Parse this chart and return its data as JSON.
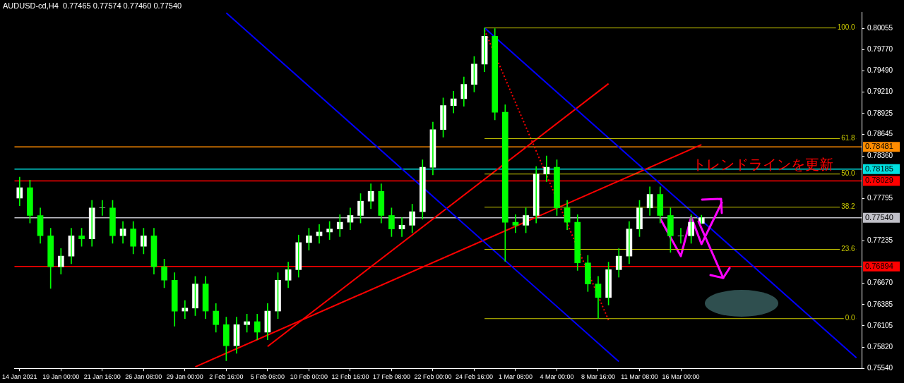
{
  "chart_data": {
    "type": "candlestick",
    "title": "AUDUSD-cd,H4  0.77465 0.77574 0.77460 0.77540",
    "color": "#00ff00",
    "categories": [
      "14 Jan 2021",
      null,
      null,
      null,
      "19 Jan 00:00",
      null,
      null,
      null,
      "21 Jan 16:00",
      null,
      null,
      null,
      "26 Jan 08:00",
      null,
      null,
      null,
      "29 Jan 00:00",
      null,
      null,
      null,
      "2 Feb 16:00",
      null,
      null,
      null,
      "5 Feb 08:00",
      null,
      null,
      null,
      "10 Feb 00:00",
      null,
      null,
      null,
      "12 Feb 16:00",
      null,
      null,
      null,
      "17 Feb 08:00",
      null,
      null,
      null,
      "22 Feb 00:00",
      null,
      null,
      null,
      "24 Feb 16:00",
      null,
      null,
      null,
      "1 Mar 08:00",
      null,
      null,
      null,
      "4 Mar 00:00",
      null,
      null,
      null,
      "8 Mar 16:00",
      null,
      null,
      null,
      "11 Mar 08:00",
      null,
      null,
      null,
      "16 Mar 00:00",
      null,
      null,
      null,
      null,
      null,
      null,
      null,
      null,
      null,
      null,
      null,
      null,
      null,
      null,
      null,
      null,
      null
    ],
    "ohlc": [
      [
        0.778,
        0.7808,
        0.777,
        0.7794
      ],
      [
        0.7794,
        0.7804,
        0.7747,
        0.7757
      ],
      [
        0.7757,
        0.7767,
        0.772,
        0.773
      ],
      [
        0.773,
        0.774,
        0.766,
        0.7689
      ],
      [
        0.7689,
        0.7713,
        0.7679,
        0.7703
      ],
      [
        0.7703,
        0.774,
        0.7693,
        0.773
      ],
      [
        0.773,
        0.774,
        0.7716,
        0.7726
      ],
      [
        0.7726,
        0.7777,
        0.7716,
        0.7767
      ],
      [
        0.7767,
        0.7777,
        0.7757,
        0.7767
      ],
      [
        0.7767,
        0.7777,
        0.772,
        0.773
      ],
      [
        0.773,
        0.7749,
        0.772,
        0.7739
      ],
      [
        0.7739,
        0.7749,
        0.7706,
        0.7716
      ],
      [
        0.7716,
        0.774,
        0.7706,
        0.773
      ],
      [
        0.773,
        0.774,
        0.7679,
        0.7689
      ],
      [
        0.7689,
        0.7699,
        0.7661,
        0.7671
      ],
      [
        0.7671,
        0.7681,
        0.761,
        0.763
      ],
      [
        0.763,
        0.7644,
        0.762,
        0.7634
      ],
      [
        0.7634,
        0.7676,
        0.7624,
        0.7666
      ],
      [
        0.7666,
        0.7676,
        0.762,
        0.763
      ],
      [
        0.763,
        0.764,
        0.7602,
        0.7612
      ],
      [
        0.7612,
        0.7622,
        0.7564,
        0.7584
      ],
      [
        0.7584,
        0.7622,
        0.7574,
        0.7612
      ],
      [
        0.7612,
        0.7626,
        0.7602,
        0.7616
      ],
      [
        0.7616,
        0.7626,
        0.7592,
        0.7602
      ],
      [
        0.7602,
        0.764,
        0.7592,
        0.763
      ],
      [
        0.763,
        0.7681,
        0.762,
        0.7671
      ],
      [
        0.7671,
        0.7695,
        0.7661,
        0.7685
      ],
      [
        0.7685,
        0.7731,
        0.7675,
        0.7721
      ],
      [
        0.7721,
        0.774,
        0.7711,
        0.773
      ],
      [
        0.773,
        0.7745,
        0.772,
        0.7735
      ],
      [
        0.7735,
        0.7749,
        0.7725,
        0.7739
      ],
      [
        0.7739,
        0.7758,
        0.7729,
        0.7748
      ],
      [
        0.7748,
        0.7767,
        0.7738,
        0.7757
      ],
      [
        0.7757,
        0.7786,
        0.7747,
        0.7776
      ],
      [
        0.7776,
        0.7799,
        0.7766,
        0.7789
      ],
      [
        0.7789,
        0.7799,
        0.7747,
        0.7757
      ],
      [
        0.7757,
        0.7767,
        0.7729,
        0.7739
      ],
      [
        0.7739,
        0.7754,
        0.7729,
        0.7744
      ],
      [
        0.7744,
        0.7772,
        0.7734,
        0.7762
      ],
      [
        0.7762,
        0.7831,
        0.7752,
        0.7821
      ],
      [
        0.7821,
        0.7881,
        0.7811,
        0.7871
      ],
      [
        0.7871,
        0.7913,
        0.7861,
        0.7903
      ],
      [
        0.7903,
        0.7922,
        0.7893,
        0.7912
      ],
      [
        0.7912,
        0.7941,
        0.7902,
        0.7931
      ],
      [
        0.7931,
        0.7968,
        0.7921,
        0.7958
      ],
      [
        0.7958,
        0.8006,
        0.7948,
        0.7995
      ],
      [
        0.7995,
        0.8005,
        0.7884,
        0.7894
      ],
      [
        0.7894,
        0.7904,
        0.7696,
        0.7748
      ],
      [
        0.7748,
        0.7758,
        0.7734,
        0.7744
      ],
      [
        0.7744,
        0.7767,
        0.7734,
        0.7757
      ],
      [
        0.7757,
        0.7822,
        0.7747,
        0.7812
      ],
      [
        0.7812,
        0.7836,
        0.7802,
        0.7821
      ],
      [
        0.7821,
        0.7831,
        0.7757,
        0.7767
      ],
      [
        0.7767,
        0.7777,
        0.7738,
        0.7748
      ],
      [
        0.7748,
        0.7758,
        0.7684,
        0.7694
      ],
      [
        0.7694,
        0.7704,
        0.7656,
        0.7666
      ],
      [
        0.7666,
        0.7676,
        0.762,
        0.7648
      ],
      [
        0.7648,
        0.7695,
        0.7638,
        0.7685
      ],
      [
        0.7685,
        0.7713,
        0.7675,
        0.7703
      ],
      [
        0.7703,
        0.7749,
        0.7693,
        0.7739
      ],
      [
        0.7739,
        0.7777,
        0.7729,
        0.7767
      ],
      [
        0.7767,
        0.7795,
        0.7757,
        0.7785
      ],
      [
        0.7785,
        0.7795,
        0.7747,
        0.7757
      ],
      [
        0.7757,
        0.7767,
        0.7708,
        0.773
      ],
      [
        0.773,
        0.774,
        0.772,
        0.773
      ],
      [
        0.773,
        0.7758,
        0.772,
        0.7748
      ],
      [
        0.77465,
        0.77574,
        0.7746,
        0.7754
      ],
      null,
      null,
      null,
      null,
      null,
      null,
      null,
      null,
      null,
      null,
      null,
      null,
      null,
      null,
      null
    ],
    "colors": [
      "#ffffff",
      "#00ff00",
      "#00ff00",
      "#00ff00",
      "#ffffff",
      "#ffffff",
      "#00ff00",
      "#ffffff",
      "#ffffff",
      "#00ff00",
      "#ffffff",
      "#00ff00",
      "#ffffff",
      "#00ff00",
      "#00ff00",
      "#00ff00",
      "#ffffff",
      "#ffffff",
      "#00ff00",
      "#00ff00",
      "#00ff00",
      "#ffffff",
      "#ffffff",
      "#00ff00",
      "#ffffff",
      "#ffffff",
      "#ffffff",
      "#ffffff",
      "#ffffff",
      "#ffffff",
      "#ffffff",
      "#ffffff",
      "#ffffff",
      "#ffffff",
      "#ffffff",
      "#00ff00",
      "#00ff00",
      "#ffffff",
      "#ffffff",
      "#ffffff",
      "#ffffff",
      "#ffffff",
      "#ffffff",
      "#ffffff",
      "#ffffff",
      "#ffffff",
      "#00ff00",
      "#00ff00",
      "#00ff00",
      "#ffffff",
      "#ffffff",
      "#ffffff",
      "#00ff00",
      "#00ff00",
      "#00ff00",
      "#00ff00",
      "#00ff00",
      "#ffffff",
      "#ffffff",
      "#ffffff",
      "#ffffff",
      "#ffffff",
      "#00ff00",
      "#00ff00",
      "#ffffff",
      "#ffffff",
      "#ffffff",
      null,
      null,
      null,
      null,
      null,
      null,
      null,
      null,
      null,
      null,
      null,
      null,
      null,
      null,
      null
    ],
    "ylim": [
      0.7554,
      0.8027
    ],
    "yticks": [
      {
        "value": 0.80055,
        "label": "0.80055"
      },
      {
        "value": 0.7977,
        "label": "0.79770"
      },
      {
        "value": 0.7949,
        "label": "0.79490"
      },
      {
        "value": 0.7921,
        "label": "0.79210"
      },
      {
        "value": 0.78925,
        "label": "0.78925"
      },
      {
        "value": 0.78645,
        "label": "0.78645"
      },
      {
        "value": 0.7836,
        "label": "0.78360"
      },
      {
        "value": 0.77795,
        "label": "0.77795"
      },
      {
        "value": 0.77235,
        "label": "0.77235"
      },
      {
        "value": 0.7667,
        "label": "0.76670"
      },
      {
        "value": 0.76385,
        "label": "0.76385"
      },
      {
        "value": 0.76105,
        "label": "0.76105"
      },
      {
        "value": 0.7582,
        "label": "0.75820"
      },
      {
        "value": 0.7554,
        "label": "0.75540"
      }
    ],
    "series": [
      {
        "type": "line",
        "name": "100.0",
        "color": "#c8c800",
        "values": [
          null,
          null,
          null,
          null,
          null,
          null,
          null,
          null,
          null,
          null,
          null,
          null,
          null,
          null,
          null,
          null,
          null,
          null,
          null,
          null,
          null,
          null,
          null,
          null,
          null,
          null,
          null,
          null,
          null,
          null,
          null,
          null,
          null,
          null,
          null,
          null,
          null,
          null,
          null,
          null,
          null,
          null,
          null,
          null,
          null,
          0.8006,
          null,
          null,
          null,
          null,
          null,
          null,
          null,
          null,
          null,
          null,
          null,
          null,
          null,
          null,
          null,
          null,
          null,
          null,
          null,
          null,
          null,
          null,
          null,
          null,
          null,
          null,
          null,
          null,
          null,
          null,
          null,
          null,
          null,
          null,
          null,
          0.8006
        ]
      },
      {
        "type": "line",
        "name": "61.8",
        "color": "#c8c800",
        "values": [
          null,
          null,
          null,
          null,
          null,
          null,
          null,
          null,
          null,
          null,
          null,
          null,
          null,
          null,
          null,
          null,
          null,
          null,
          null,
          null,
          null,
          null,
          null,
          null,
          null,
          null,
          null,
          null,
          null,
          null,
          null,
          null,
          null,
          null,
          null,
          null,
          null,
          null,
          null,
          null,
          null,
          null,
          null,
          null,
          null,
          0.7859,
          null,
          null,
          null,
          null,
          null,
          null,
          null,
          null,
          null,
          null,
          null,
          null,
          null,
          null,
          null,
          null,
          null,
          null,
          null,
          null,
          null,
          null,
          null,
          null,
          null,
          null,
          null,
          null,
          null,
          null,
          null,
          null,
          null,
          null,
          null,
          0.7859
        ]
      },
      {
        "type": "line",
        "name": "50.0",
        "color": "#c8c800",
        "values": [
          null,
          null,
          null,
          null,
          null,
          null,
          null,
          null,
          null,
          null,
          null,
          null,
          null,
          null,
          null,
          null,
          null,
          null,
          null,
          null,
          null,
          null,
          null,
          null,
          null,
          null,
          null,
          null,
          null,
          null,
          null,
          null,
          null,
          null,
          null,
          null,
          null,
          null,
          null,
          null,
          null,
          null,
          null,
          null,
          null,
          0.7812,
          null,
          null,
          null,
          null,
          null,
          null,
          null,
          null,
          null,
          null,
          null,
          null,
          null,
          null,
          null,
          null,
          null,
          null,
          null,
          null,
          null,
          null,
          null,
          null,
          null,
          null,
          null,
          null,
          null,
          null,
          null,
          null,
          null,
          null,
          null,
          0.7812
        ]
      },
      {
        "type": "line",
        "name": "38.2",
        "color": "#c8c800",
        "values": [
          null,
          null,
          null,
          null,
          null,
          null,
          null,
          null,
          null,
          null,
          null,
          null,
          null,
          null,
          null,
          null,
          null,
          null,
          null,
          null,
          null,
          null,
          null,
          null,
          null,
          null,
          null,
          null,
          null,
          null,
          null,
          null,
          null,
          null,
          null,
          null,
          null,
          null,
          null,
          null,
          null,
          null,
          null,
          null,
          null,
          0.7768,
          null,
          null,
          null,
          null,
          null,
          null,
          null,
          null,
          null,
          null,
          null,
          null,
          null,
          null,
          null,
          null,
          null,
          null,
          null,
          null,
          null,
          null,
          null,
          null,
          null,
          null,
          null,
          null,
          null,
          null,
          null,
          null,
          null,
          null,
          null,
          0.7768
        ]
      },
      {
        "type": "line",
        "name": "23.6",
        "color": "#c8c800",
        "values": [
          null,
          null,
          null,
          null,
          null,
          null,
          null,
          null,
          null,
          null,
          null,
          null,
          null,
          null,
          null,
          null,
          null,
          null,
          null,
          null,
          null,
          null,
          null,
          null,
          null,
          null,
          null,
          null,
          null,
          null,
          null,
          null,
          null,
          null,
          null,
          null,
          null,
          null,
          null,
          null,
          null,
          null,
          null,
          null,
          null,
          0.7712,
          null,
          null,
          null,
          null,
          null,
          null,
          null,
          null,
          null,
          null,
          null,
          null,
          null,
          null,
          null,
          null,
          null,
          null,
          null,
          null,
          null,
          null,
          null,
          null,
          null,
          null,
          null,
          null,
          null,
          null,
          null,
          null,
          null,
          null,
          null,
          0.7712
        ]
      },
      {
        "type": "line",
        "name": "0.0",
        "color": "#c8c800",
        "values": [
          null,
          null,
          null,
          null,
          null,
          null,
          null,
          null,
          null,
          null,
          null,
          null,
          null,
          null,
          null,
          null,
          null,
          null,
          null,
          null,
          null,
          null,
          null,
          null,
          null,
          null,
          null,
          null,
          null,
          null,
          null,
          null,
          null,
          null,
          null,
          null,
          null,
          null,
          null,
          null,
          null,
          null,
          null,
          null,
          null,
          0.762,
          null,
          null,
          null,
          null,
          null,
          null,
          null,
          null,
          null,
          null,
          null,
          null,
          null,
          null,
          null,
          null,
          null,
          null,
          null,
          null,
          null,
          null,
          null,
          null,
          null,
          null,
          null,
          null,
          null,
          null,
          null,
          null,
          null,
          null,
          null,
          0.762
        ]
      },
      {
        "type": "line",
        "color": "#ff00ff",
        "values": [
          null,
          null,
          null,
          null,
          null,
          null,
          null,
          null,
          null,
          null,
          null,
          null,
          null,
          null,
          null,
          null,
          null,
          null,
          null,
          null,
          null,
          null,
          null,
          null,
          null,
          null,
          null,
          null,
          null,
          null,
          null,
          null,
          null,
          null,
          null,
          null,
          null,
          null,
          null,
          null,
          null,
          null,
          null,
          null,
          null,
          null,
          null,
          null,
          null,
          null,
          null,
          null,
          null,
          null,
          null,
          null,
          null,
          null,
          null,
          null,
          null,
          null,
          0.7753,
          null,
          0.7703,
          0.7755,
          0.7719,
          null,
          0.7775,
          null,
          null,
          null,
          null,
          null,
          null,
          null,
          null,
          null,
          null,
          null,
          null,
          null
        ]
      },
      {
        "type": "line",
        "color": "#0000ff",
        "values": [
          null,
          null,
          null,
          null,
          null,
          null,
          null,
          null,
          null,
          null,
          null,
          null,
          null,
          null,
          null,
          null,
          null,
          null,
          null,
          null,
          0.8026,
          null,
          null,
          null,
          null,
          null,
          null,
          null,
          null,
          null,
          null,
          null,
          null,
          null,
          null,
          null,
          null,
          null,
          null,
          null,
          null,
          null,
          null,
          null,
          null,
          null,
          null,
          null,
          null,
          null,
          null,
          null,
          null,
          null,
          null,
          null,
          null,
          null,
          0.7563,
          null,
          null,
          null,
          null,
          null,
          null,
          null,
          null,
          null,
          null,
          null,
          null,
          null,
          null,
          null,
          null,
          null,
          null,
          null,
          null,
          null,
          null,
          null
        ]
      },
      {
        "type": "line",
        "color": "#0000ff",
        "values": [
          null,
          null,
          null,
          null,
          null,
          null,
          null,
          null,
          null,
          null,
          null,
          null,
          null,
          null,
          null,
          null,
          null,
          null,
          null,
          null,
          null,
          null,
          null,
          null,
          null,
          null,
          null,
          null,
          null,
          null,
          null,
          null,
          null,
          null,
          null,
          null,
          null,
          null,
          null,
          null,
          null,
          null,
          null,
          null,
          null,
          0.8006,
          null,
          null,
          null,
          null,
          null,
          null,
          null,
          null,
          null,
          null,
          null,
          null,
          null,
          null,
          null,
          null,
          null,
          null,
          null,
          null,
          null,
          null,
          null,
          null,
          null,
          null,
          null,
          null,
          null,
          null,
          null,
          null,
          null,
          null,
          null,
          0.7568
        ]
      },
      {
        "type": "line",
        "color": "#ff0000",
        "values": [
          null,
          null,
          null,
          null,
          null,
          null,
          null,
          null,
          null,
          null,
          null,
          null,
          null,
          null,
          null,
          null,
          null,
          null,
          null,
          null,
          null,
          null,
          null,
          null,
          0.7583,
          null,
          null,
          null,
          null,
          null,
          null,
          null,
          null,
          null,
          null,
          null,
          null,
          null,
          null,
          null,
          null,
          null,
          null,
          null,
          null,
          null,
          null,
          null,
          null,
          null,
          null,
          null,
          null,
          null,
          null,
          null,
          null,
          0.7932,
          null,
          null,
          null,
          null,
          null,
          null,
          null,
          null,
          null,
          null,
          null,
          null,
          null,
          null,
          null,
          null,
          null,
          null,
          null,
          null,
          null,
          null,
          null,
          null
        ]
      },
      {
        "type": "line",
        "color": "#ff0000",
        "values": [
          null,
          null,
          null,
          null,
          null,
          null,
          null,
          null,
          null,
          null,
          null,
          null,
          null,
          null,
          null,
          null,
          null,
          0.7556,
          null,
          null,
          null,
          null,
          null,
          null,
          null,
          null,
          null,
          null,
          null,
          null,
          null,
          null,
          null,
          null,
          null,
          null,
          null,
          null,
          null,
          null,
          null,
          null,
          null,
          null,
          null,
          null,
          null,
          null,
          null,
          null,
          null,
          null,
          null,
          null,
          null,
          null,
          null,
          null,
          null,
          null,
          null,
          null,
          null,
          null,
          null,
          null,
          0.7851,
          null,
          null,
          null,
          null,
          null,
          null,
          null,
          null,
          null,
          null,
          null,
          null,
          null,
          null,
          null
        ]
      },
      {
        "type": "line",
        "color": "#ff0000",
        "line_style": "dotted",
        "values": [
          null,
          null,
          null,
          null,
          null,
          null,
          null,
          null,
          null,
          null,
          null,
          null,
          null,
          null,
          null,
          null,
          null,
          null,
          null,
          null,
          null,
          null,
          null,
          null,
          null,
          null,
          null,
          null,
          null,
          null,
          null,
          null,
          null,
          null,
          null,
          null,
          null,
          null,
          null,
          null,
          null,
          null,
          null,
          null,
          null,
          0.8003,
          null,
          null,
          null,
          null,
          null,
          null,
          null,
          null,
          null,
          null,
          null,
          0.7618,
          null,
          null,
          null,
          null,
          null,
          null,
          null,
          null,
          null,
          null,
          null,
          null,
          null,
          null,
          null,
          null,
          null,
          null,
          null,
          null,
          null,
          null,
          null,
          null
        ]
      }
    ],
    "ref_lines": [
      {
        "axis": "y",
        "value": 0.78481,
        "label": "0.78481",
        "color": "#ff8c00"
      },
      {
        "axis": "y",
        "value": 0.78185,
        "label": "0.78185",
        "color": "#00e0e0"
      },
      {
        "axis": "y",
        "value": 0.78029,
        "label": "0.78029",
        "color": "#ff0000"
      },
      {
        "axis": "y",
        "value": 0.7754,
        "label": "0.77540",
        "color": "#c0c0c8"
      },
      {
        "axis": "y",
        "value": 0.76894,
        "label": "0.76894",
        "color": "#ff0000"
      }
    ],
    "annotations": [
      "トレンドラインを更新"
    ],
    "marker": "none"
  }
}
